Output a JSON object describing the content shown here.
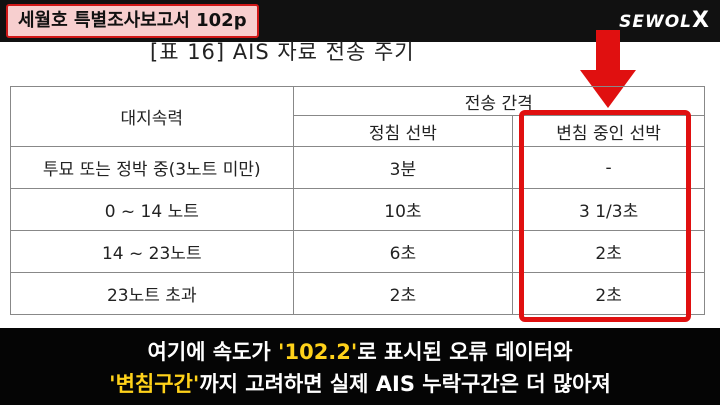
{
  "header": {
    "report_label": "세월호 특별조사보고서 102p",
    "brand_main": "SEWOL",
    "brand_x": "X"
  },
  "table": {
    "title": "[표 16] AIS 자료 전송 주기",
    "col_speed": "대지속력",
    "col_interval": "전송 간격",
    "col_stable": "정침 선박",
    "col_turning": "변침 중인 선박",
    "rows": [
      {
        "speed": "투묘 또는 정박 중(3노트 미만)",
        "stable": "3분",
        "turning": "-"
      },
      {
        "speed": "0 ~ 14 노트",
        "stable": "10초",
        "turning": "3 1/3초"
      },
      {
        "speed": "14 ~ 23노트",
        "stable": "6초",
        "turning": "2초"
      },
      {
        "speed": "23노트 초과",
        "stable": "2초",
        "turning": "2초"
      }
    ]
  },
  "colors": {
    "highlight": "#e01010",
    "subtitle_accent": "#ffd21a"
  },
  "subtitle": {
    "line1_a": "여기에 속도가 ",
    "line1_b": "'102.2'",
    "line1_c": "로 표시된 오류 데이터와",
    "line2_a": "'변침구간'",
    "line2_b": "까지 고려하면 실제 AIS 누락구간은 더 많아져"
  }
}
